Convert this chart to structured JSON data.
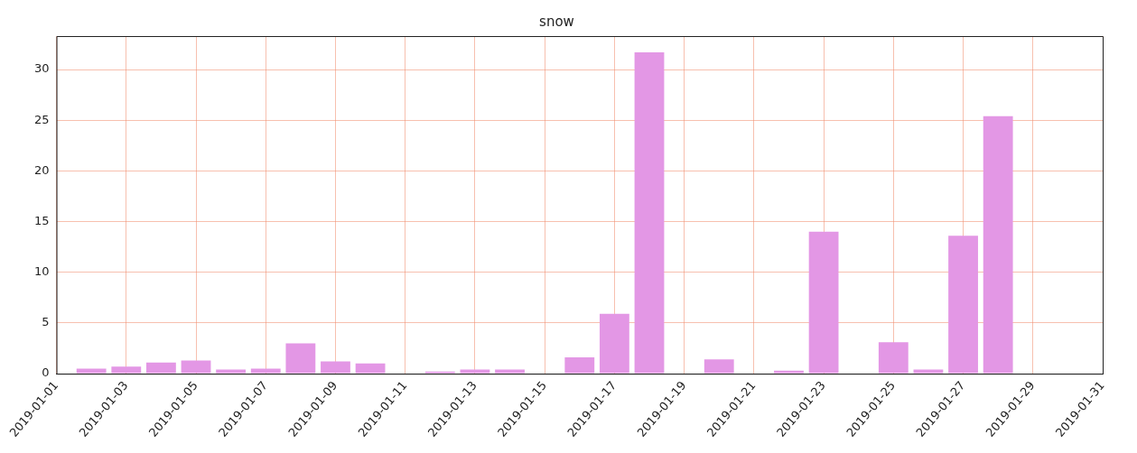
{
  "chart_data": {
    "type": "bar",
    "title": "snow",
    "x": [
      "2019-01-02",
      "2019-01-03",
      "2019-01-04",
      "2019-01-05",
      "2019-01-06",
      "2019-01-07",
      "2019-01-08",
      "2019-01-09",
      "2019-01-10",
      "2019-01-11",
      "2019-01-12",
      "2019-01-13",
      "2019-01-14",
      "2019-01-15",
      "2019-01-16",
      "2019-01-17",
      "2019-01-18",
      "2019-01-19",
      "2019-01-20",
      "2019-01-21",
      "2019-01-22",
      "2019-01-23",
      "2019-01-24",
      "2019-01-25",
      "2019-01-26",
      "2019-01-27",
      "2019-01-28"
    ],
    "values": [
      0.5,
      0.7,
      1.1,
      1.3,
      0.4,
      0.5,
      3.0,
      1.2,
      1.0,
      0,
      0.2,
      0.4,
      0.4,
      0,
      1.6,
      5.9,
      31.7,
      0,
      1.4,
      0,
      0.3,
      14.0,
      0,
      3.1,
      0.4,
      13.6,
      25.4
    ],
    "color": "#e397e5",
    "xlim": [
      "2019-01-01",
      "2019-01-31"
    ],
    "xticks": [
      "2019-01-01",
      "2019-01-03",
      "2019-01-05",
      "2019-01-07",
      "2019-01-09",
      "2019-01-11",
      "2019-01-13",
      "2019-01-15",
      "2019-01-17",
      "2019-01-19",
      "2019-01-21",
      "2019-01-23",
      "2019-01-25",
      "2019-01-27",
      "2019-01-29",
      "2019-01-31"
    ],
    "ylim": [
      0,
      33.3
    ],
    "yticks": [
      0,
      5,
      10,
      15,
      20,
      25,
      30
    ],
    "grid": true,
    "legend": false
  }
}
